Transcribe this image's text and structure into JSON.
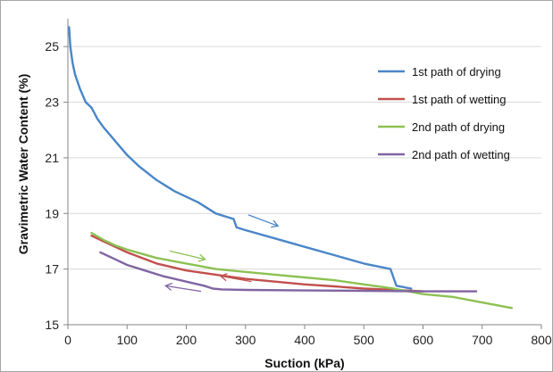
{
  "chart_data": {
    "type": "line",
    "xlabel": "Suction (kPa)",
    "ylabel": "Gravimetric Water Content (%)",
    "xlim": [
      0,
      800
    ],
    "ylim": [
      15,
      26
    ],
    "x_ticks": [
      0,
      100,
      200,
      300,
      400,
      500,
      600,
      700,
      800
    ],
    "y_ticks": [
      15,
      17,
      19,
      21,
      23,
      25
    ],
    "grid": "horizontal",
    "legend_position": "top-right",
    "series": [
      {
        "name": "1st path of drying",
        "color": "#4a86c8",
        "x": [
          2,
          4,
          8,
          12,
          20,
          30,
          40,
          50,
          60,
          80,
          100,
          120,
          150,
          180,
          200,
          220,
          250,
          280,
          285,
          300,
          350,
          400,
          450,
          500,
          545,
          555,
          580
        ],
        "y": [
          25.7,
          25.0,
          24.4,
          24.0,
          23.5,
          23.0,
          22.8,
          22.4,
          22.1,
          21.6,
          21.1,
          20.7,
          20.2,
          19.8,
          19.6,
          19.4,
          19.0,
          18.8,
          18.5,
          18.4,
          18.1,
          17.8,
          17.5,
          17.2,
          17.0,
          16.4,
          16.3
        ]
      },
      {
        "name": "1st path of wetting",
        "color": "#c0504d",
        "x": [
          40,
          60,
          80,
          100,
          150,
          200,
          250,
          300,
          350,
          400,
          450,
          500,
          550,
          600
        ],
        "y": [
          18.2,
          18.0,
          17.8,
          17.6,
          17.2,
          16.95,
          16.8,
          16.65,
          16.55,
          16.45,
          16.38,
          16.3,
          16.25,
          16.2
        ]
      },
      {
        "name": "2nd path of drying",
        "color": "#8dc152",
        "x": [
          40,
          60,
          80,
          100,
          150,
          200,
          250,
          300,
          350,
          400,
          450,
          500,
          550,
          600,
          650,
          700,
          750
        ],
        "y": [
          18.3,
          18.05,
          17.85,
          17.7,
          17.4,
          17.2,
          17.0,
          16.9,
          16.8,
          16.7,
          16.6,
          16.45,
          16.3,
          16.1,
          16.0,
          15.8,
          15.6
        ]
      },
      {
        "name": "2nd path of wetting",
        "color": "#8064a2",
        "x": [
          55,
          80,
          100,
          130,
          160,
          200,
          230,
          245,
          260,
          300,
          400,
          500,
          600,
          690
        ],
        "y": [
          17.6,
          17.35,
          17.15,
          16.95,
          16.75,
          16.55,
          16.4,
          16.3,
          16.27,
          16.25,
          16.23,
          16.22,
          16.2,
          16.2
        ]
      }
    ],
    "annotations": [
      {
        "type": "arrow",
        "color": "#4a86c8",
        "from": [
          305,
          18.95
        ],
        "to": [
          355,
          18.55
        ]
      },
      {
        "type": "arrow",
        "color": "#8dc152",
        "from": [
          172,
          17.65
        ],
        "to": [
          232,
          17.35
        ]
      },
      {
        "type": "arrow",
        "color": "#c0504d",
        "from": [
          310,
          16.55
        ],
        "to": [
          258,
          16.75
        ]
      },
      {
        "type": "arrow",
        "color": "#8064a2",
        "from": [
          225,
          16.2
        ],
        "to": [
          165,
          16.4
        ]
      }
    ]
  }
}
